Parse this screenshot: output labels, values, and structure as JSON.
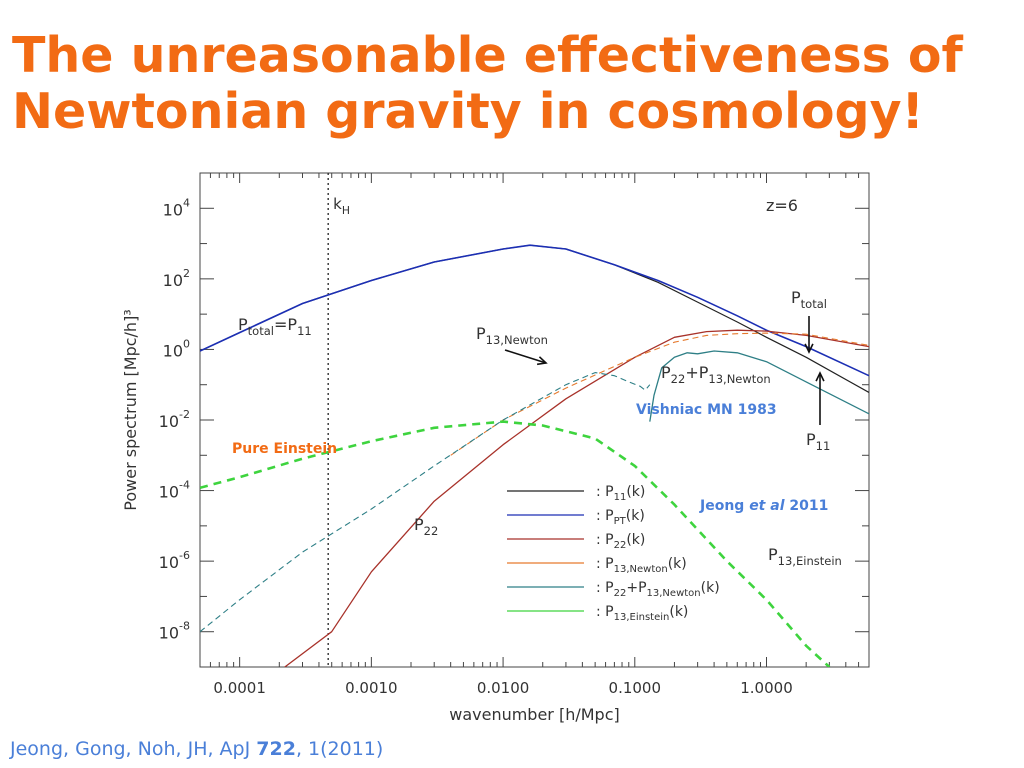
{
  "slide": {
    "title_line1": "The unreasonable effectiveness of",
    "title_line2": "Newtonian gravity in cosmology!",
    "title_color": "#f26b14",
    "citation": {
      "prefix": "Jeong, Gong, Noh, JH, ApJ ",
      "volume": "722",
      "suffix": ", 1(2011)",
      "color": "#4a7fd8"
    }
  },
  "chart_data": {
    "type": "line",
    "scale": {
      "x": "log",
      "y": "log"
    },
    "xlim": [
      5e-05,
      6
    ],
    "ylim": [
      1e-09,
      100000.0
    ],
    "xlabel": "wavenumber [h/Mpc]",
    "ylabel": "Power spectrum [Mpc/h]³",
    "x_ticks": [
      {
        "value": 0.0001,
        "label": "0.0001"
      },
      {
        "value": 0.001,
        "label": "0.0010"
      },
      {
        "value": 0.01,
        "label": "0.0100"
      },
      {
        "value": 0.1,
        "label": "0.1000"
      },
      {
        "value": 1,
        "label": "1.0000"
      }
    ],
    "y_ticks": [
      {
        "value": 10000.0,
        "base": "10",
        "exp": "4"
      },
      {
        "value": 100.0,
        "base": "10",
        "exp": "2"
      },
      {
        "value": 1,
        "base": "10",
        "exp": "0"
      },
      {
        "value": 0.01,
        "base": "10",
        "exp": "-2"
      },
      {
        "value": 0.0001,
        "base": "10",
        "exp": "-4"
      },
      {
        "value": 1e-06,
        "base": "10",
        "exp": "-6"
      },
      {
        "value": 1e-08,
        "base": "10",
        "exp": "-8"
      }
    ],
    "redshift_label": "z=6",
    "horizon": {
      "x": 0.00047,
      "label_main": "k",
      "label_sub": "H"
    },
    "series": [
      {
        "key": "p11",
        "color": "#222222",
        "dash": "",
        "width": 1.2,
        "points": [
          [
            5e-05,
            0.9
          ],
          [
            0.0001,
            3
          ],
          [
            0.0003,
            20
          ],
          [
            0.001,
            90
          ],
          [
            0.003,
            300
          ],
          [
            0.01,
            700
          ],
          [
            0.016,
            900
          ],
          [
            0.03,
            700
          ],
          [
            0.07,
            250
          ],
          [
            0.15,
            80
          ],
          [
            0.3,
            22
          ],
          [
            0.6,
            6
          ],
          [
            1.0,
            2.2
          ],
          [
            2.0,
            0.6
          ],
          [
            6,
            0.06
          ]
        ]
      },
      {
        "key": "ppt",
        "color": "#1c2fb4",
        "dash": "",
        "width": 1.6,
        "points": [
          [
            5e-05,
            0.9
          ],
          [
            0.0001,
            3
          ],
          [
            0.0003,
            20
          ],
          [
            0.001,
            90
          ],
          [
            0.003,
            300
          ],
          [
            0.01,
            700
          ],
          [
            0.016,
            900
          ],
          [
            0.03,
            700
          ],
          [
            0.07,
            250
          ],
          [
            0.15,
            90
          ],
          [
            0.3,
            30
          ],
          [
            0.6,
            9
          ],
          [
            1.0,
            3.5
          ],
          [
            2.0,
            1.2
          ],
          [
            6,
            0.18
          ]
        ]
      },
      {
        "key": "p22",
        "color": "#a8322a",
        "dash": "",
        "width": 1.3,
        "points": [
          [
            0.00022,
            1e-09
          ],
          [
            0.0005,
            1e-08
          ],
          [
            0.001,
            5e-07
          ],
          [
            0.003,
            5e-05
          ],
          [
            0.01,
            0.002
          ],
          [
            0.03,
            0.04
          ],
          [
            0.1,
            0.6
          ],
          [
            0.2,
            2.2
          ],
          [
            0.35,
            3.2
          ],
          [
            0.6,
            3.5
          ],
          [
            1.0,
            3.3
          ],
          [
            2.0,
            2.5
          ],
          [
            6,
            1.2
          ]
        ]
      },
      {
        "key": "p13newton",
        "color": "#e67a2e",
        "dash": "6,4",
        "width": 1.1,
        "points": [
          [
            0.004,
            0.001
          ],
          [
            0.01,
            0.01
          ],
          [
            0.03,
            0.08
          ],
          [
            0.1,
            0.6
          ],
          [
            0.2,
            1.6
          ],
          [
            0.35,
            2.5
          ],
          [
            0.6,
            2.8
          ],
          [
            1.0,
            2.9
          ],
          [
            2.0,
            2.7
          ],
          [
            6,
            1.3
          ]
        ]
      },
      {
        "key": "p22p13",
        "color": "#2e7f86",
        "dash": "6,4",
        "width": 1.1,
        "points": [
          [
            5e-05,
            1e-08
          ],
          [
            0.0001,
            8e-08
          ],
          [
            0.0003,
            1.8e-06
          ],
          [
            0.001,
            3e-05
          ],
          [
            0.003,
            0.0005
          ],
          [
            0.01,
            0.01
          ],
          [
            0.03,
            0.1
          ],
          [
            0.05,
            0.22
          ],
          [
            0.07,
            0.18
          ],
          [
            0.09,
            0.12
          ],
          [
            0.11,
            0.09
          ],
          [
            0.12,
            0.07
          ],
          [
            0.13,
            0.1
          ]
        ]
      },
      {
        "key": "p22p13solid",
        "color": "#2e7f86",
        "dash": "",
        "width": 1.3,
        "points": [
          [
            0.13,
            0.009
          ],
          [
            0.14,
            0.05
          ],
          [
            0.16,
            0.3
          ],
          [
            0.2,
            0.6
          ],
          [
            0.25,
            0.8
          ],
          [
            0.3,
            0.75
          ],
          [
            0.4,
            0.9
          ],
          [
            0.6,
            0.8
          ],
          [
            1.0,
            0.45
          ],
          [
            2.0,
            0.12
          ],
          [
            6,
            0.015
          ]
        ]
      },
      {
        "key": "p13einstein",
        "color": "#3ed43e",
        "dash": "8,6",
        "width": 2.6,
        "points": [
          [
            5e-05,
            0.00012
          ],
          [
            0.0001,
            0.00024
          ],
          [
            0.0003,
            0.0008
          ],
          [
            0.001,
            0.0025
          ],
          [
            0.003,
            0.006
          ],
          [
            0.01,
            0.009
          ],
          [
            0.02,
            0.007
          ],
          [
            0.05,
            0.003
          ],
          [
            0.1,
            0.0005
          ],
          [
            0.2,
            4e-05
          ],
          [
            0.5,
            1e-06
          ],
          [
            1.0,
            8e-08
          ],
          [
            2.0,
            4e-09
          ],
          [
            3,
            1e-09
          ]
        ]
      }
    ],
    "legend": [
      {
        "key": "p11",
        "color": "#222222",
        "main": "P",
        "sub": "11",
        "tail": "(k)"
      },
      {
        "key": "ppt",
        "color": "#1c2fb4",
        "main": "P",
        "sub": "PT",
        "tail": "(k)"
      },
      {
        "key": "p22",
        "color": "#a8322a",
        "main": "P",
        "sub": "22",
        "tail": "(k)"
      },
      {
        "key": "p13newton",
        "color": "#e67a2e",
        "main": "P",
        "sub": "13,Newton",
        "tail": "(k)"
      },
      {
        "key": "p22p13",
        "color": "#2e7f86",
        "main": "P",
        "sub": "22",
        "mid": "+P",
        "sub2": "13,Newton",
        "tail": "(k)"
      },
      {
        "key": "p13einstein",
        "color": "#3ed43e",
        "main": "P",
        "sub": "13,Einstein",
        "tail": "(k)"
      }
    ],
    "annotations": {
      "ptotal_eq": {
        "main": "P",
        "sub": "total",
        "mid": "=P",
        "sub2": "11"
      },
      "p13newton": {
        "main": "P",
        "sub": "13,Newton"
      },
      "p22p13": {
        "main": "P",
        "sub": "22",
        "mid": "+P",
        "sub2": "13,Newton"
      },
      "ptotal": {
        "main": "P",
        "sub": "total"
      },
      "p11": {
        "main": "P",
        "sub": "11"
      },
      "p22": {
        "main": "P",
        "sub": "22"
      },
      "p13einstein": {
        "main": "P",
        "sub": "13,Einstein"
      },
      "vishniac": {
        "text": "Vishniac MN 1983",
        "color": "#4a7fd8"
      },
      "pure_einstein": {
        "text": "Pure Einstein",
        "color": "#f26b14"
      },
      "jeong": {
        "pre": "Jeong ",
        "italic": "et al",
        "post": " 2011",
        "color": "#4a7fd8"
      }
    }
  }
}
